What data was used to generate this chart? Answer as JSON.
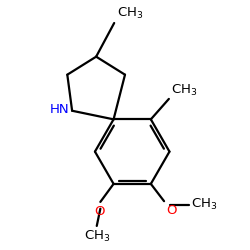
{
  "background": "#ffffff",
  "bond_color": "#000000",
  "NH_color": "#0000ff",
  "O_color": "#ff0000",
  "font_size": 9.5,
  "bond_width": 1.6,
  "xlim": [
    0,
    10
  ],
  "ylim": [
    0,
    10
  ]
}
